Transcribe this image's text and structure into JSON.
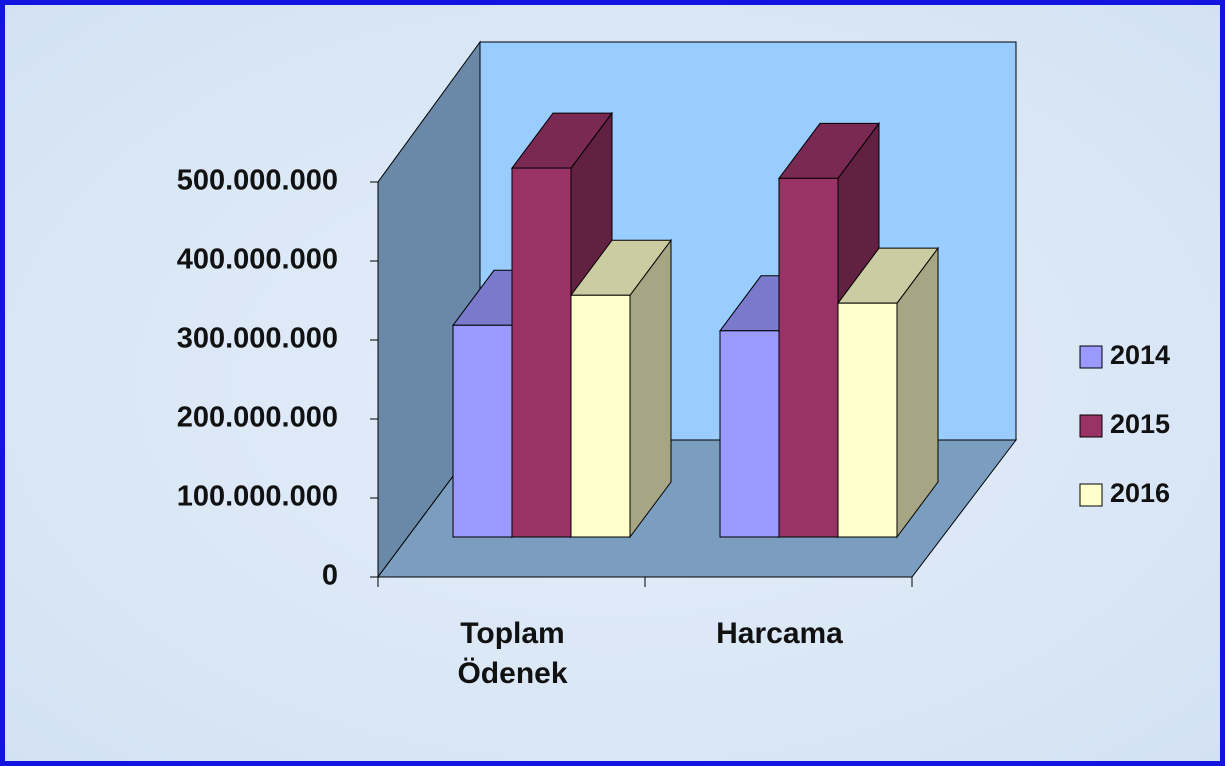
{
  "chart_data": {
    "type": "bar3d",
    "categories": [
      "Toplam Ödenek",
      "Harcama"
    ],
    "series": [
      {
        "name": "2014",
        "color": "#9999ff",
        "values": [
          268000000,
          261000000
        ]
      },
      {
        "name": "2015",
        "color": "#993366",
        "values": [
          467000000,
          454000000
        ]
      },
      {
        "name": "2016",
        "color": "#ffffcc",
        "values": [
          306000000,
          296000000
        ]
      }
    ],
    "ylim": [
      0,
      500000000
    ],
    "yticks": [
      0,
      {
        "value": 100000000,
        "label": "100.000.000"
      },
      {
        "value": 200000000,
        "label": "200.000.000"
      },
      {
        "value": 300000000,
        "label": "300.000.000"
      },
      {
        "value": 400000000,
        "label": "400.000.000"
      },
      {
        "value": 500000000,
        "label": "500.000.000"
      }
    ],
    "legend": "right"
  }
}
